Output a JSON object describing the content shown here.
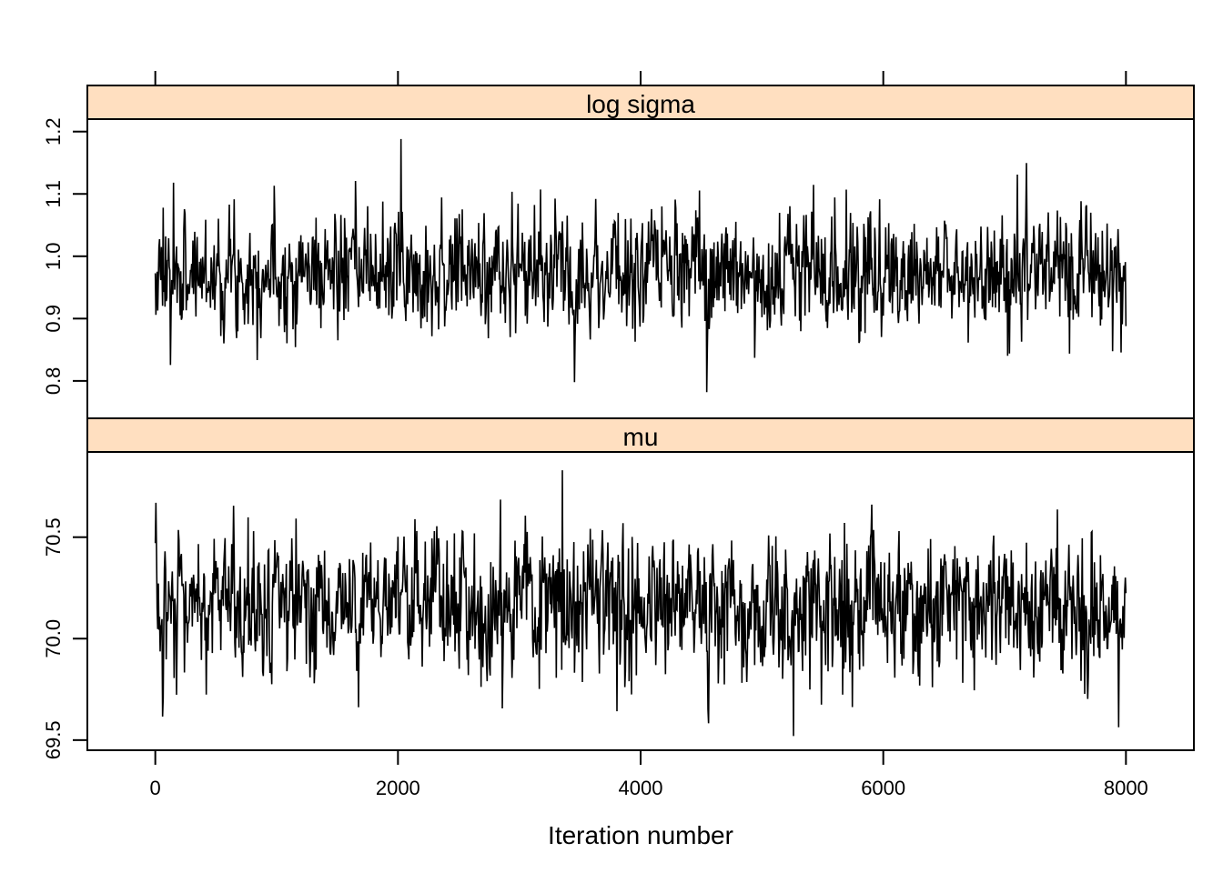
{
  "chart_data": {
    "type": "line",
    "xlabel": "Iteration number",
    "x_ticks": [
      0,
      2000,
      4000,
      6000,
      8000
    ],
    "xlim": [
      -560,
      8560
    ],
    "n_iterations": 8000,
    "line_color": "#000000",
    "strip_color": "#ffdfc0",
    "panels": [
      {
        "name": "log sigma",
        "ylim": [
          0.74,
          1.22
        ],
        "y_ticks": [
          0.8,
          0.9,
          1.0,
          1.1,
          1.2
        ],
        "y_tick_labels": [
          "0.8",
          "0.9",
          "1.0",
          "1.1",
          "1.2"
        ],
        "center": 0.975,
        "spread": 0.045,
        "min": 0.782,
        "max": 1.188,
        "seed": 7
      },
      {
        "name": "mu",
        "ylim": [
          69.45,
          70.92
        ],
        "y_ticks": [
          69.5,
          70.0,
          70.5
        ],
        "y_tick_labels": [
          "69.5",
          "70.0",
          "70.5"
        ],
        "center": 70.16,
        "spread": 0.17,
        "min": 69.52,
        "max": 70.83,
        "seed": 13
      }
    ]
  }
}
